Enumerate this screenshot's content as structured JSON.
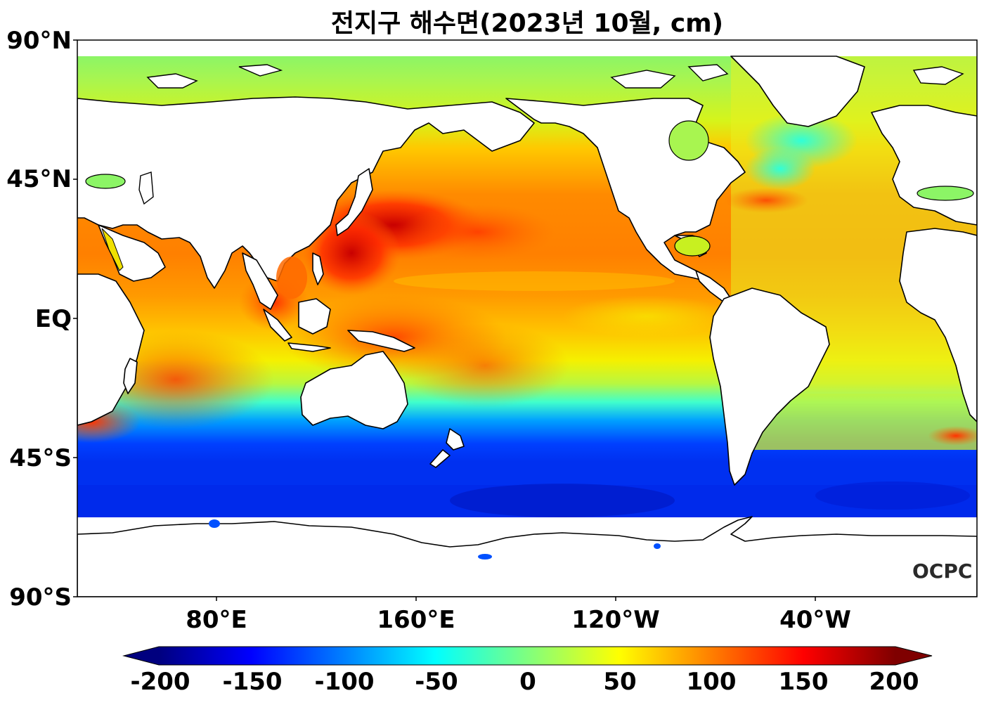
{
  "title": "전지구 해수면(2023년 10월, cm)",
  "logo": "OCPC",
  "lat_labels": [
    "90°N",
    "45°N",
    "EQ",
    "45°S",
    "90°S"
  ],
  "lon_labels": [
    "80°E",
    "160°E",
    "120°W",
    "40°W"
  ],
  "colorbar": {
    "ticks": [
      "-200",
      "-150",
      "-100",
      "-50",
      "0",
      "50",
      "100",
      "150",
      "200"
    ],
    "range": [
      -200,
      200
    ],
    "colormap": "jet",
    "colors": [
      "#00007f",
      "#0000ff",
      "#007fff",
      "#00ffff",
      "#7fff7f",
      "#ffff00",
      "#ff7f00",
      "#ff0000",
      "#7f0000"
    ]
  },
  "colors": {
    "land": "#ffffff",
    "coastline": "#000000"
  }
}
